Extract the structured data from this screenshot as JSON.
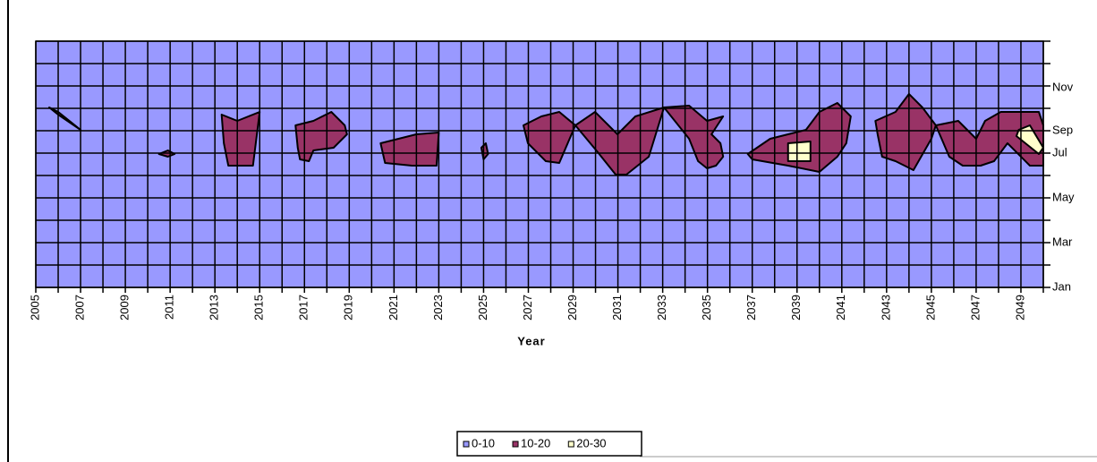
{
  "chart_data": {
    "type": "contour",
    "x_label": "Year",
    "xlim": [
      2005,
      2050
    ],
    "xticks": [
      2005,
      2007,
      2009,
      2011,
      2013,
      2015,
      2017,
      2019,
      2021,
      2023,
      2025,
      2027,
      2029,
      2031,
      2033,
      2035,
      2037,
      2039,
      2041,
      2043,
      2045,
      2047,
      2049
    ],
    "xminor": [
      2006,
      2008,
      2010,
      2012,
      2014,
      2016,
      2018,
      2020,
      2022,
      2024,
      2026,
      2028,
      2030,
      2032,
      2034,
      2036,
      2038,
      2040,
      2042,
      2044,
      2046,
      2048,
      2050
    ],
    "ylim": [
      0,
      11
    ],
    "yticks": [
      {
        "value": 0,
        "label": "Jan"
      },
      {
        "value": 2,
        "label": "Mar"
      },
      {
        "value": 4,
        "label": "May"
      },
      {
        "value": 6,
        "label": "Jul"
      },
      {
        "value": 7,
        "label": "Sep"
      },
      {
        "value": 9,
        "label": "Nov"
      }
    ],
    "yminor": [
      1,
      3,
      5,
      8,
      10,
      11
    ],
    "grid": true,
    "series": [
      {
        "name": "0-10",
        "color": "#9999ff"
      },
      {
        "name": "10-20",
        "color": "#993366",
        "regions": [
          {
            "x": [
              2005.6,
              2006.0,
              2007.0,
              2006.0
            ],
            "y": [
              8.04,
              7.84,
              7.04,
              7.72
            ]
          },
          {
            "x": [
              2010.5,
              2010.9,
              2011.2,
              2010.9
            ],
            "y": [
              5.96,
              6.12,
              5.96,
              5.84
            ]
          },
          {
            "x": [
              2013.3,
              2014.0,
              2015.0,
              2014.7,
              2013.6,
              2013.4
            ],
            "y": [
              7.72,
              7.44,
              7.84,
              5.44,
              5.44,
              6.44
            ]
          },
          {
            "x": [
              2016.6,
              2017.4,
              2018.2,
              2018.8,
              2018.9,
              2018.3,
              2017.4,
              2017.2,
              2016.8,
              2016.7
            ],
            "y": [
              7.24,
              7.44,
              7.84,
              7.24,
              6.84,
              6.24,
              6.12,
              5.64,
              5.72,
              6.24
            ]
          },
          {
            "x": [
              2020.4,
              2022.0,
              2023.0,
              2022.9,
              2021.8,
              2020.6
            ],
            "y": [
              6.44,
              6.84,
              6.92,
              5.44,
              5.44,
              5.56
            ]
          },
          {
            "x": [
              2024.9,
              2025.1,
              2025.2,
              2025.0
            ],
            "y": [
              6.24,
              6.44,
              5.96,
              5.72
            ]
          },
          {
            "x": [
              2026.78,
              2027.58,
              2028.38,
              2029.1,
              2029.98,
              2030.98,
              2031.78,
              2033.06,
              2032.38,
              2031.38,
              2030.9,
              2030.1,
              2029.1,
              2028.38,
              2027.78,
              2026.98
            ],
            "y": [
              7.24,
              7.64,
              7.84,
              7.24,
              7.84,
              6.84,
              7.64,
              8.04,
              5.84,
              5.04,
              5.04,
              6.04,
              7.24,
              5.56,
              5.64,
              6.44
            ]
          },
          {
            "x": [
              2033.06,
              2034.18,
              2034.98,
              2035.7,
              2035.18,
              2035.58,
              2035.7,
              2035.38,
              2034.98,
              2034.58,
              2034.18
            ],
            "y": [
              8.04,
              8.12,
              7.44,
              7.64,
              6.84,
              6.44,
              5.84,
              5.44,
              5.32,
              5.64,
              6.64
            ]
          },
          {
            "x": [
              2036.8,
              2037.8,
              2039.4,
              2040.0,
              2040.8,
              2041.4,
              2041.2,
              2040.8,
              2040.0,
              2038.6,
              2037.0
            ],
            "y": [
              5.96,
              6.64,
              7.04,
              7.84,
              8.24,
              7.64,
              6.44,
              5.84,
              5.16,
              5.44,
              5.72
            ]
          },
          {
            "x": [
              2042.5,
              2043.4,
              2044.0,
              2044.6,
              2045.2,
              2045.0,
              2044.2,
              2043.4,
              2042.8,
              2042.6
            ],
            "y": [
              7.44,
              7.84,
              8.64,
              8.04,
              7.24,
              6.64,
              5.24,
              5.64,
              5.84,
              6.84
            ]
          },
          {
            "x": [
              2045.2,
              2046.2,
              2047.0,
              2047.4,
              2048.1,
              2049.8,
              2050,
              2050,
              2049.4,
              2048.4,
              2047.8,
              2047.2,
              2046.4,
              2045.8
            ],
            "y": [
              7.24,
              7.44,
              6.64,
              7.44,
              7.84,
              7.84,
              7.24,
              5.44,
              5.44,
              6.44,
              5.64,
              5.44,
              5.44,
              5.84
            ]
          }
        ]
      },
      {
        "name": "20-30",
        "color": "#ffffcc",
        "regions": [
          {
            "x": [
              2038.6,
              2039.6,
              2039.6,
              2038.6
            ],
            "y": [
              6.44,
              6.52,
              5.64,
              5.64
            ]
          },
          {
            "x": [
              2048.9,
              2049.4,
              2050,
              2049.8,
              2048.8
            ],
            "y": [
              7.04,
              7.24,
              6.24,
              5.96,
              6.76
            ]
          }
        ]
      }
    ]
  }
}
